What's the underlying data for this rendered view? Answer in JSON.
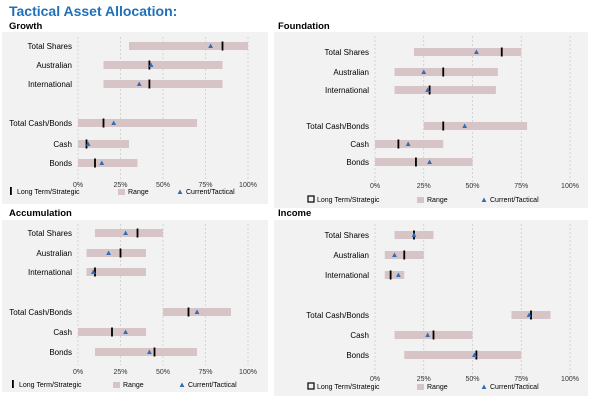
{
  "title": "Tactical Asset Allocation:",
  "colors": {
    "title": "#1f70b8",
    "plot_bg": "#f2f2f2",
    "range": "#d7c4c6",
    "strategic": "#000000",
    "tactical": "#2e6fb6",
    "grid": "#c8c8c8"
  },
  "chart_data": [
    {
      "type": "range-bar",
      "title": "Growth",
      "categories": [
        "Total Shares",
        "Australian",
        "International",
        "Total Cash/Bonds",
        "Cash",
        "Bonds"
      ],
      "xlim": [
        0,
        100
      ],
      "x_tick_labels": [
        "0%",
        "25%",
        "50%",
        "75%",
        "100%"
      ],
      "range": [
        [
          30,
          100
        ],
        [
          15,
          85
        ],
        [
          15,
          85
        ],
        [
          0,
          70
        ],
        [
          0,
          30
        ],
        [
          0,
          35
        ]
      ],
      "long_term_strategic": [
        85,
        42,
        42,
        15,
        5,
        10
      ],
      "current_tactical": [
        78,
        43,
        36,
        21,
        6,
        14
      ],
      "legend": [
        "Long Term/Strategic",
        "Range",
        "Current/Tactical"
      ],
      "legend_position": "bottom",
      "grid": true
    },
    {
      "type": "range-bar",
      "title": "Foundation",
      "categories": [
        "Total Shares",
        "Australian",
        "International",
        "Total Cash/Bonds",
        "Cash",
        "Bonds"
      ],
      "xlim": [
        0,
        100
      ],
      "x_tick_labels": [
        "0%",
        "25%",
        "50%",
        "75%",
        "100%"
      ],
      "range": [
        [
          20,
          75
        ],
        [
          10,
          63
        ],
        [
          10,
          62
        ],
        [
          25,
          78
        ],
        [
          0,
          35
        ],
        [
          0,
          50
        ]
      ],
      "long_term_strategic": [
        65,
        35,
        28,
        35,
        12,
        21
      ],
      "current_tactical": [
        52,
        25,
        27,
        46,
        17,
        28
      ],
      "legend": [
        "Long Term/Strategic",
        "Range",
        "Current/Tactical"
      ],
      "legend_position": "bottom",
      "grid": true
    },
    {
      "type": "range-bar",
      "title": "Accumulation",
      "categories": [
        "Total Shares",
        "Australian",
        "International",
        "Total Cash/Bonds",
        "Cash",
        "Bonds"
      ],
      "xlim": [
        0,
        100
      ],
      "x_tick_labels": [
        "0%",
        "25%",
        "50%",
        "75%",
        "100%"
      ],
      "range": [
        [
          10,
          50
        ],
        [
          5,
          40
        ],
        [
          5,
          40
        ],
        [
          50,
          90
        ],
        [
          0,
          40
        ],
        [
          10,
          70
        ]
      ],
      "long_term_strategic": [
        35,
        25,
        10,
        65,
        20,
        45
      ],
      "current_tactical": [
        28,
        18,
        9,
        70,
        28,
        42
      ],
      "legend": [
        "Long Term/Strategic",
        "Range",
        "Current/Tactical"
      ],
      "legend_position": "bottom",
      "grid": true
    },
    {
      "type": "range-bar",
      "title": "Income",
      "categories": [
        "Total Shares",
        "Australian",
        "International",
        "Total Cash/Bonds",
        "Cash",
        "Bonds"
      ],
      "xlim": [
        0,
        100
      ],
      "x_tick_labels": [
        "0%",
        "25%",
        "50%",
        "75%",
        "100%"
      ],
      "range": [
        [
          10,
          30
        ],
        [
          5,
          25
        ],
        [
          5,
          15
        ],
        [
          70,
          90
        ],
        [
          10,
          50
        ],
        [
          15,
          75
        ]
      ],
      "long_term_strategic": [
        20,
        15,
        8,
        80,
        30,
        52
      ],
      "current_tactical": [
        20,
        10,
        12,
        79,
        27,
        51
      ],
      "legend": [
        "Long Term/Strategic",
        "Range",
        "Current/Tactical"
      ],
      "legend_position": "bottom",
      "grid": true
    }
  ]
}
